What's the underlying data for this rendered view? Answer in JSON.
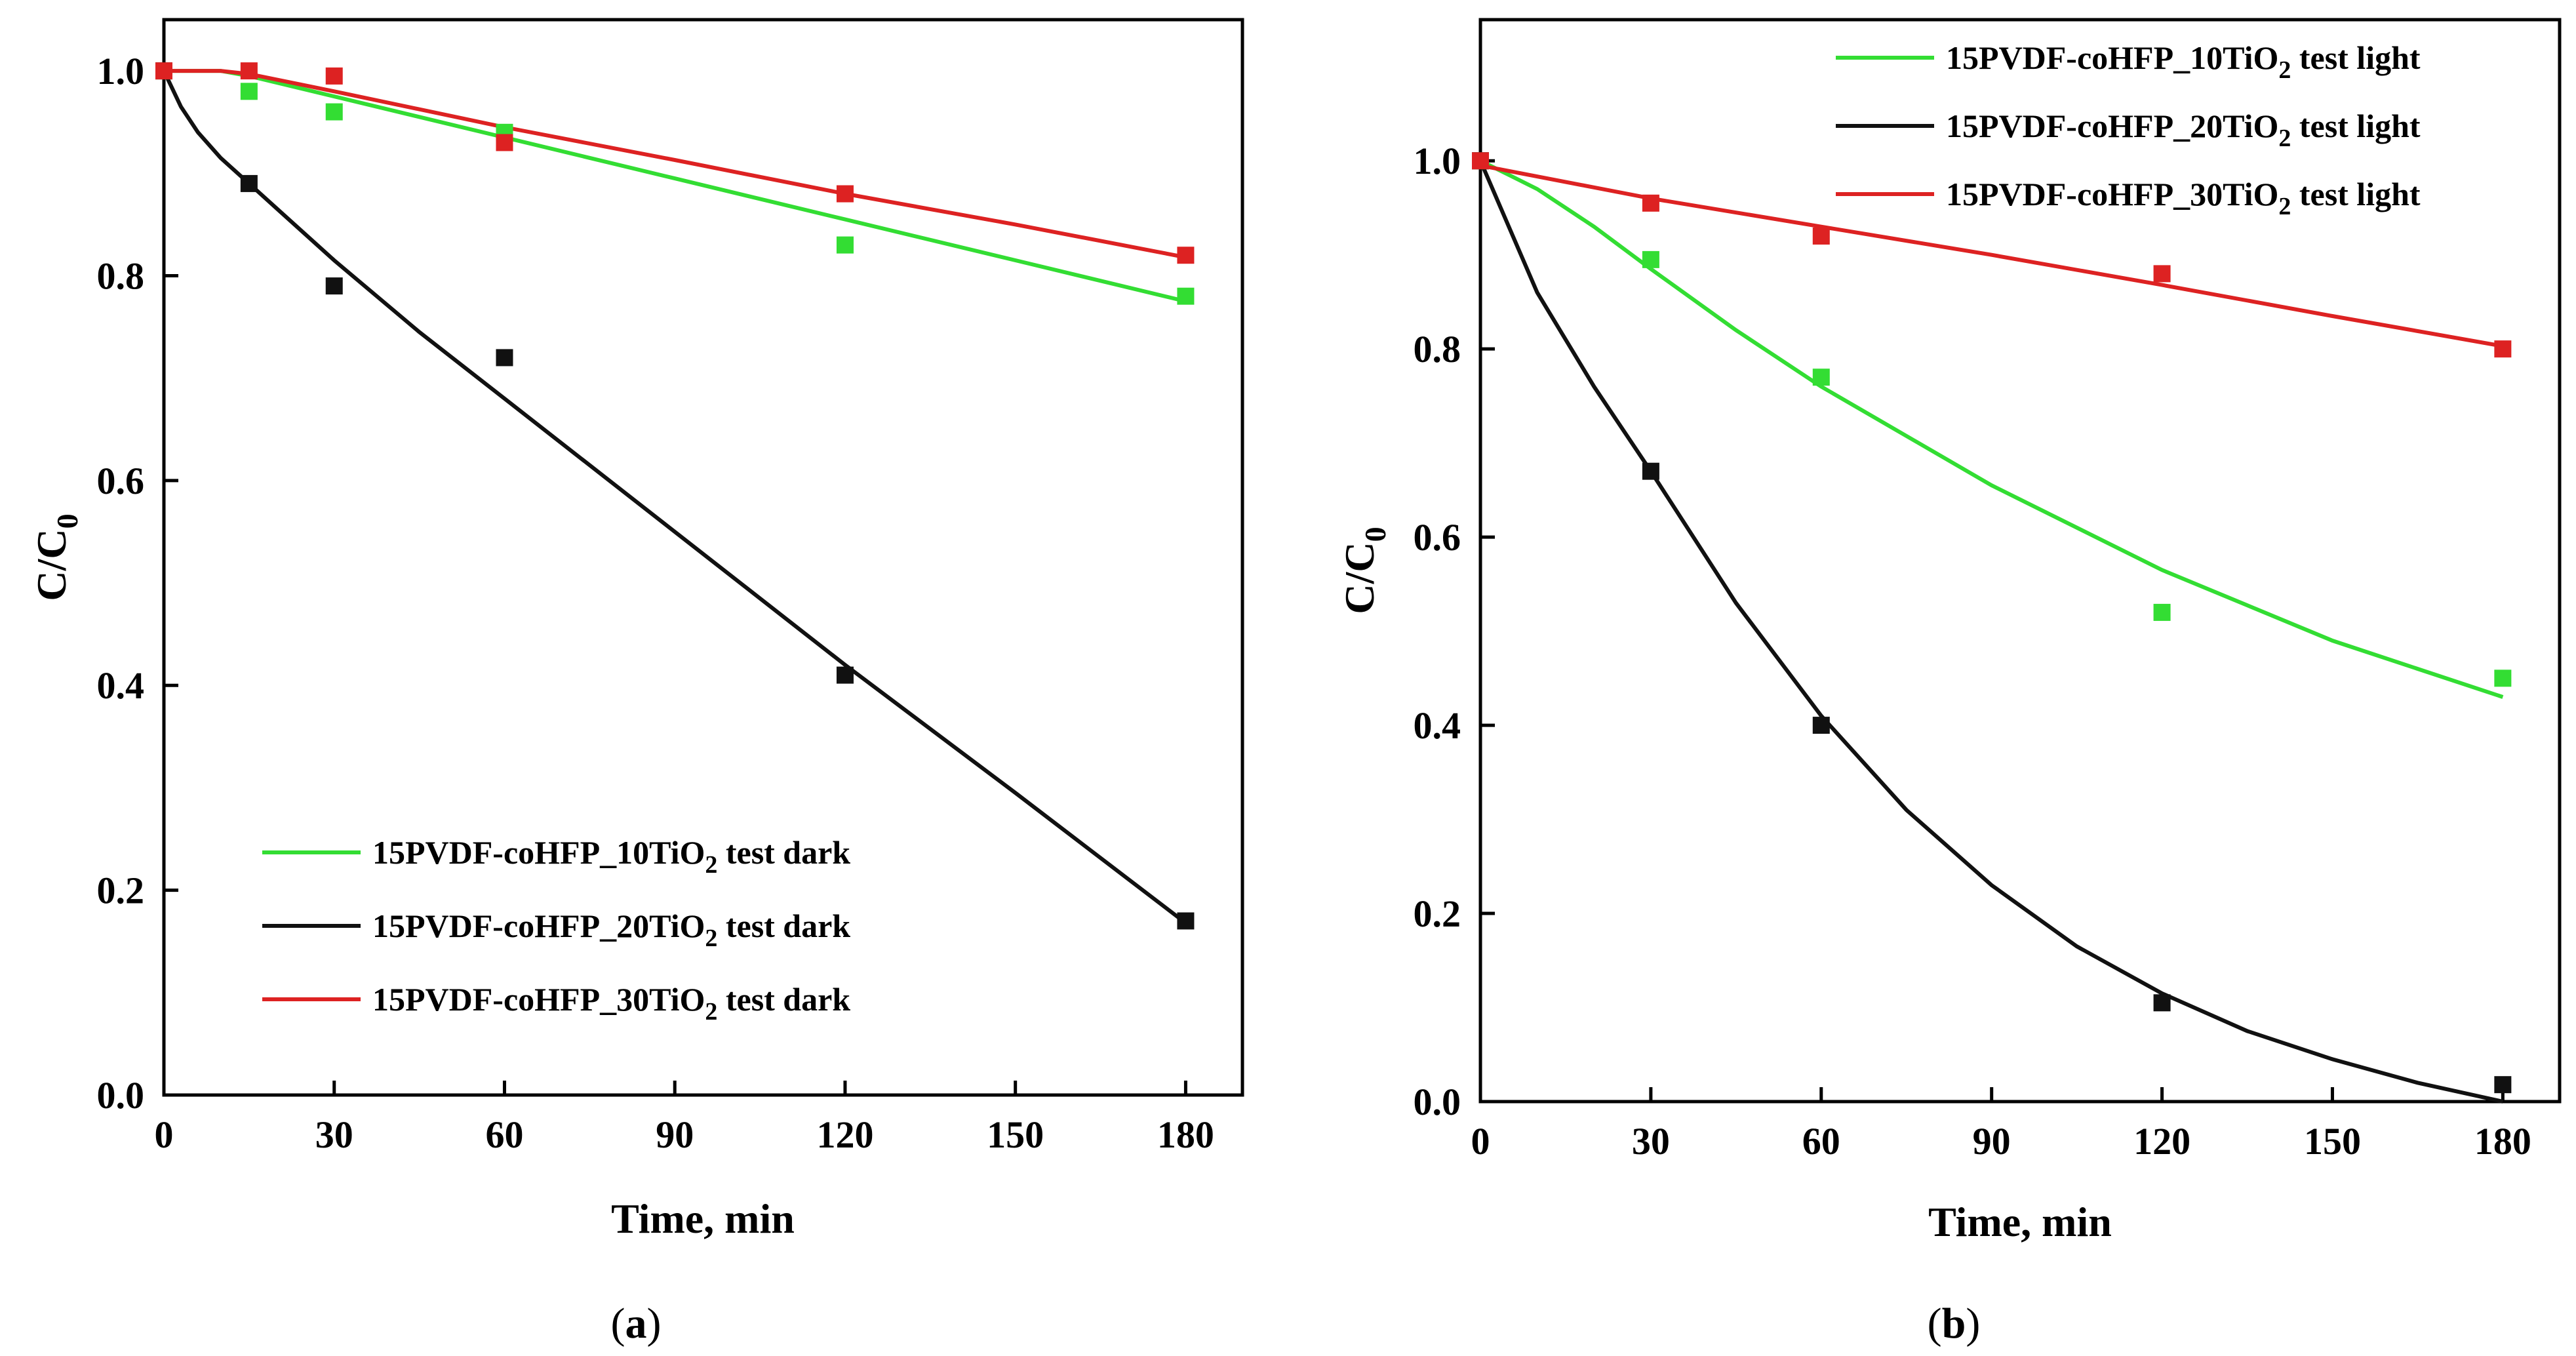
{
  "chart_data": [
    {
      "panel": "a",
      "type": "scatter",
      "panel_label": "a",
      "xlabel": "Time, min",
      "ylabel": "C/C",
      "ylabel_sub": "0",
      "xlim": [
        0,
        190
      ],
      "ylim": [
        0,
        1.05
      ],
      "xticks": [
        0,
        30,
        60,
        90,
        120,
        150,
        180
      ],
      "yticks": [
        0.0,
        0.2,
        0.4,
        0.6,
        0.8,
        1.0
      ],
      "xtick_labels": [
        "0",
        "30",
        "60",
        "90",
        "120",
        "150",
        "180"
      ],
      "ytick_labels": [
        "0.0",
        "0.2",
        "0.4",
        "0.6",
        "0.8",
        "1.0"
      ],
      "legend_position": "bottom-left",
      "series": [
        {
          "name": "15PVDF-coHFP_10TiO2 test dark",
          "legend_main": "15PVDF-coHFP_10TiO",
          "legend_sub": "2",
          "legend_tail": " test dark",
          "color": "#33dd33",
          "x": [
            0,
            15,
            30,
            60,
            120,
            180
          ],
          "y": [
            1.0,
            0.98,
            0.96,
            0.94,
            0.83,
            0.78
          ],
          "fit": {
            "x": [
              0,
              10,
              15,
              30,
              60,
              90,
              120,
              150,
              180
            ],
            "y": [
              1.0,
              1.0,
              0.995,
              0.975,
              0.935,
              0.895,
              0.855,
              0.815,
              0.775
            ]
          }
        },
        {
          "name": "15PVDF-coHFP_20TiO2 test dark",
          "legend_main": "15PVDF-coHFP_20TiO",
          "legend_sub": "2",
          "legend_tail": " test dark",
          "color": "#111111",
          "x": [
            0,
            15,
            30,
            60,
            120,
            180
          ],
          "y": [
            1.0,
            0.89,
            0.79,
            0.72,
            0.41,
            0.17
          ],
          "fit": {
            "x": [
              0,
              3,
              6,
              10,
              15,
              20,
              30,
              45,
              60,
              90,
              120,
              150,
              180
            ],
            "y": [
              1.0,
              0.965,
              0.94,
              0.915,
              0.89,
              0.865,
              0.815,
              0.745,
              0.68,
              0.55,
              0.42,
              0.295,
              0.168
            ]
          }
        },
        {
          "name": "15PVDF-coHFP_30TiO2 test dark",
          "legend_main": "15PVDF-coHFP_30TiO",
          "legend_sub": "2",
          "legend_tail": " test dark",
          "color": "#dd2222",
          "x": [
            0,
            15,
            30,
            60,
            120,
            180
          ],
          "y": [
            1.0,
            1.0,
            0.995,
            0.93,
            0.88,
            0.82
          ],
          "fit": {
            "x": [
              0,
              10,
              15,
              30,
              60,
              90,
              120,
              150,
              180
            ],
            "y": [
              1.0,
              1.0,
              0.997,
              0.98,
              0.945,
              0.913,
              0.88,
              0.85,
              0.818
            ]
          }
        }
      ]
    },
    {
      "panel": "b",
      "type": "scatter",
      "panel_label": "b",
      "xlabel": "Time, min",
      "ylabel": "C/C",
      "ylabel_sub": "0",
      "xlim": [
        0,
        190
      ],
      "ylim": [
        0,
        1.15
      ],
      "xticks": [
        0,
        30,
        60,
        90,
        120,
        150,
        180
      ],
      "yticks": [
        0.0,
        0.2,
        0.4,
        0.6,
        0.8,
        1.0
      ],
      "xtick_labels": [
        "0",
        "30",
        "60",
        "90",
        "120",
        "150",
        "180"
      ],
      "ytick_labels": [
        "0.0",
        "0.2",
        "0.4",
        "0.6",
        "0.8",
        "1.0"
      ],
      "legend_position": "top-right",
      "series": [
        {
          "name": "15PVDF-coHFP_10TiO2 test light",
          "legend_main": "15PVDF-coHFP_10TiO",
          "legend_sub": "2",
          "legend_tail": " test light",
          "color": "#33dd33",
          "x": [
            0,
            30,
            60,
            120,
            180
          ],
          "y": [
            1.0,
            0.895,
            0.77,
            0.52,
            0.45
          ],
          "fit": {
            "x": [
              0,
              5,
              10,
              20,
              30,
              45,
              60,
              90,
              120,
              150,
              180
            ],
            "y": [
              1.0,
              0.985,
              0.97,
              0.93,
              0.885,
              0.82,
              0.76,
              0.655,
              0.565,
              0.49,
              0.43
            ]
          }
        },
        {
          "name": "15PVDF-coHFP_20TiO2 test light",
          "legend_main": "15PVDF-coHFP_20TiO",
          "legend_sub": "2",
          "legend_tail": " test light",
          "color": "#111111",
          "x": [
            0,
            30,
            60,
            120,
            180
          ],
          "y": [
            1.0,
            0.67,
            0.4,
            0.105,
            0.018
          ],
          "fit": {
            "x": [
              0,
              5,
              10,
              20,
              30,
              45,
              60,
              75,
              90,
              105,
              120,
              135,
              150,
              165,
              180
            ],
            "y": [
              1.0,
              0.93,
              0.86,
              0.76,
              0.67,
              0.53,
              0.41,
              0.31,
              0.23,
              0.165,
              0.115,
              0.075,
              0.045,
              0.02,
              0.0
            ]
          }
        },
        {
          "name": "15PVDF-coHFP_30TiO2 test light",
          "legend_main": "15PVDF-coHFP_30TiO",
          "legend_sub": "2",
          "legend_tail": " test light",
          "color": "#dd2222",
          "x": [
            0,
            30,
            60,
            120,
            180
          ],
          "y": [
            1.0,
            0.955,
            0.92,
            0.88,
            0.8
          ],
          "fit": {
            "x": [
              0,
              30,
              60,
              90,
              120,
              150,
              180
            ],
            "y": [
              0.995,
              0.96,
              0.93,
              0.9,
              0.868,
              0.835,
              0.803
            ]
          }
        }
      ]
    }
  ]
}
